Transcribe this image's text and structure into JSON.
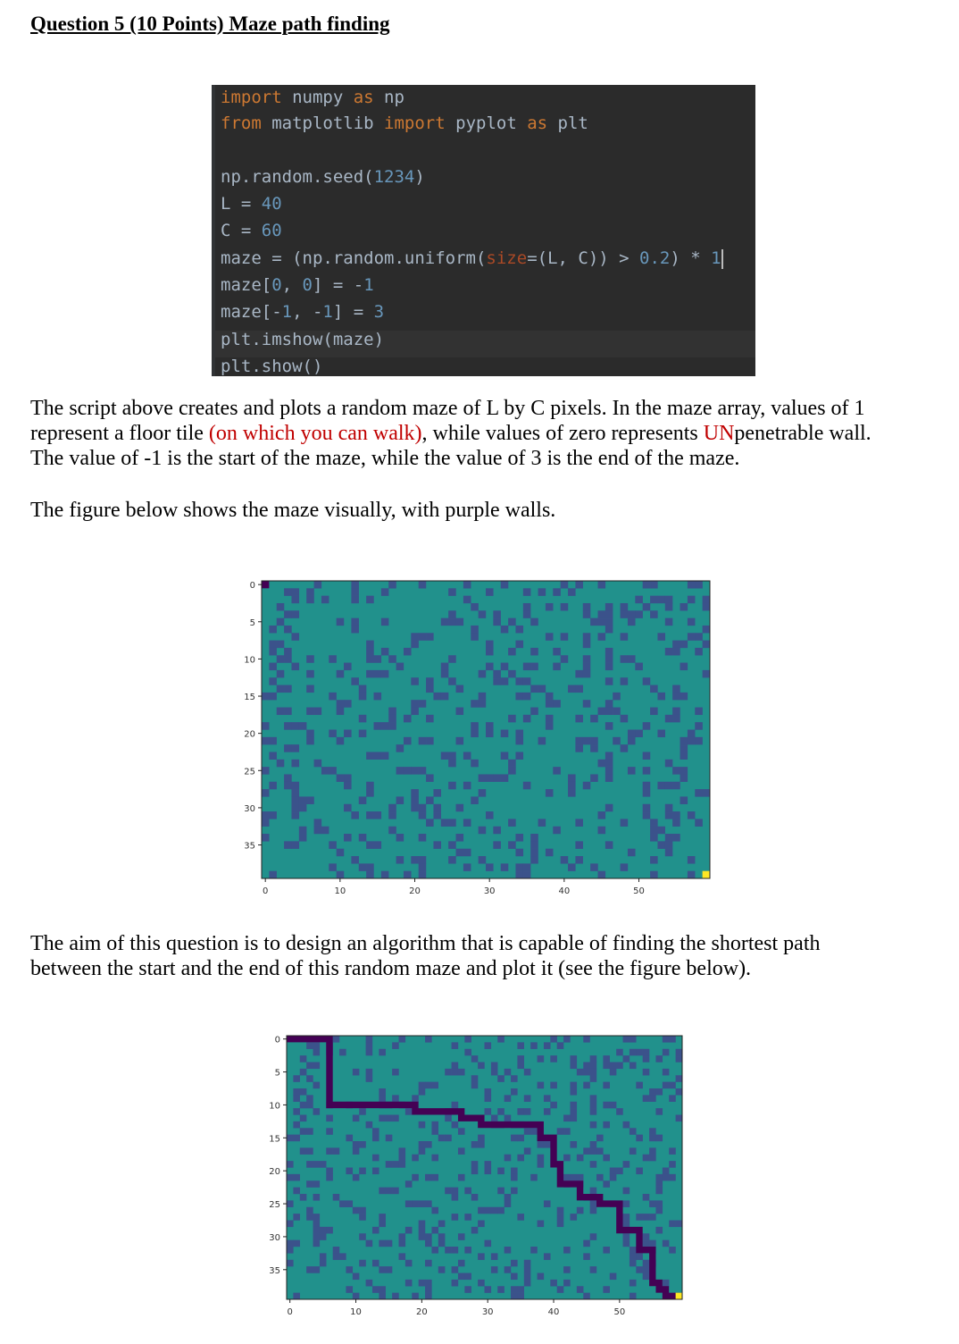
{
  "heading": "Question 5 (10 Points) Maze path finding",
  "code": {
    "lines": [
      [
        "import",
        " numpy ",
        "as",
        " np"
      ],
      [
        "from",
        " matplotlib ",
        "import",
        " pyplot ",
        "as",
        " plt"
      ],
      [
        "np.random.seed(",
        "1234",
        ")"
      ],
      [
        "L = ",
        "40"
      ],
      [
        "C = ",
        "60"
      ],
      [
        "maze = (np.random.uniform(",
        "size",
        "=(L, C)) > ",
        "0.2",
        ") * ",
        "1"
      ],
      [
        "maze[",
        "0",
        ", ",
        "0",
        "] = -",
        "1"
      ],
      [
        "maze[-",
        "1",
        ", -",
        "1",
        "] = ",
        "3"
      ],
      [
        "plt.imshow(maze)"
      ],
      [
        "plt.show()"
      ]
    ]
  },
  "para1": {
    "line1": "The script above creates and plots a random maze of L by C pixels. In the maze array, values of 1",
    "line2_a": "represent a floor tile ",
    "line2_red": "(on which you can walk)",
    "line2_b": ", while values of zero represents ",
    "line2_red2": "UN",
    "line2_c": "penetrable wall.",
    "line3": "The value of -1 is the start of the maze, while the value of 3 is the end of the maze."
  },
  "para2": "The figure below shows the maze visually, with purple walls.",
  "para3": {
    "line1": "The aim of this question is to design an algorithm that is capable of finding the shortest path",
    "line2": "between the start and the end of this random maze and plot it (see the figure below)."
  },
  "chart_data": [
    {
      "type": "heatmap",
      "rows": 40,
      "cols": 60,
      "start": [
        0,
        0
      ],
      "end": [
        39,
        59
      ],
      "xticks": [
        "0",
        "10",
        "20",
        "30",
        "40",
        "50"
      ],
      "yticks": [
        "0",
        "5",
        "10",
        "15",
        "20",
        "25",
        "30",
        "35"
      ],
      "colors": {
        "floor": "#21918c",
        "wall": "#3b528b",
        "start": "#440154",
        "end": "#fde725"
      }
    },
    {
      "type": "heatmap",
      "rows": 40,
      "cols": 60,
      "start": [
        0,
        0
      ],
      "end": [
        39,
        59
      ],
      "xticks": [
        "0",
        "10",
        "20",
        "30",
        "40",
        "50"
      ],
      "yticks": [
        "0",
        "5",
        "10",
        "15",
        "20",
        "25",
        "30",
        "35"
      ],
      "path": [
        [
          0,
          0
        ],
        [
          0,
          6
        ],
        [
          10,
          6
        ],
        [
          10,
          19
        ],
        [
          11,
          19
        ],
        [
          11,
          26
        ],
        [
          12,
          26
        ],
        [
          12,
          29
        ],
        [
          13,
          29
        ],
        [
          13,
          38
        ],
        [
          15,
          38
        ],
        [
          15,
          40
        ],
        [
          19,
          40
        ],
        [
          19,
          41
        ],
        [
          22,
          41
        ],
        [
          22,
          44
        ],
        [
          24,
          44
        ],
        [
          24,
          47
        ],
        [
          25,
          47
        ],
        [
          25,
          50
        ],
        [
          29,
          50
        ],
        [
          29,
          53
        ],
        [
          32,
          53
        ],
        [
          32,
          55
        ],
        [
          37,
          55
        ],
        [
          37,
          56
        ],
        [
          38,
          56
        ],
        [
          38,
          57
        ],
        [
          39,
          57
        ],
        [
          39,
          59
        ]
      ],
      "colors": {
        "floor": "#21918c",
        "wall": "#3b528b",
        "path": "#440154",
        "end": "#fde725"
      }
    }
  ]
}
